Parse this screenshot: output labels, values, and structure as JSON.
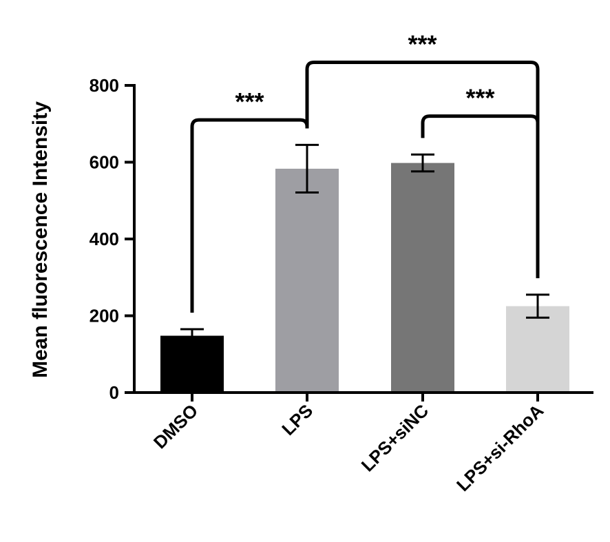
{
  "chart_data": {
    "type": "bar",
    "title": "",
    "xlabel": "",
    "ylabel": "Mean fluorescence  Intensity",
    "ylim": [
      0,
      800
    ],
    "yticks": [
      0,
      200,
      400,
      600,
      800
    ],
    "grid": false,
    "categories": [
      "DMSO",
      "LPS",
      "LPS+siNC",
      "LPS+si-RhoA"
    ],
    "values": [
      148,
      583,
      598,
      225
    ],
    "errors": [
      17,
      62,
      22,
      30
    ],
    "colors": [
      "#000000",
      "#9e9ea3",
      "#767676",
      "#d5d5d5"
    ],
    "significance": [
      {
        "from": 0,
        "to": 1,
        "label": "***",
        "level": 710
      },
      {
        "from": 1,
        "to": 3,
        "label": "***",
        "level": 860
      },
      {
        "from": 2,
        "to": 3,
        "label": "***",
        "level": 720
      }
    ]
  }
}
